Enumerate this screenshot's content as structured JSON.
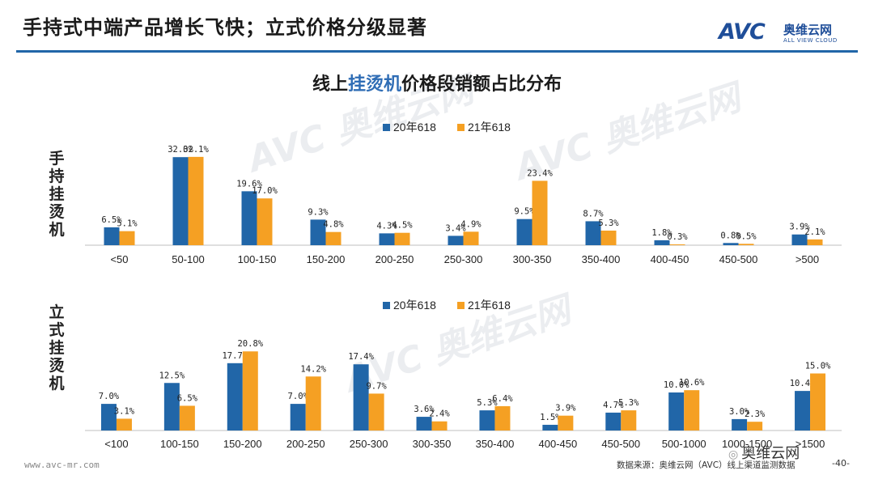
{
  "header": {
    "title": "手持式中端产品增长飞快；立式价格分级显著",
    "logo_mark": "AVC",
    "logo_cn": "奥维云网",
    "logo_en": "ALL VIEW CLOUD"
  },
  "chart_title": {
    "pre": "线上",
    "highlight": "挂烫机",
    "post": "价格段销额占比分布"
  },
  "colors": {
    "series1": "#2166a8",
    "series2": "#f5a023",
    "accent": "#2166a8"
  },
  "chart_data": [
    {
      "type": "bar",
      "side_label": "手持挂烫机",
      "categories": [
        "<50",
        "50-100",
        "100-150",
        "150-200",
        "200-250",
        "250-300",
        "300-350",
        "350-400",
        "400-450",
        "450-500",
        ">500"
      ],
      "series": [
        {
          "name": "20年618",
          "values": [
            6.5,
            32.0,
            19.6,
            9.3,
            4.3,
            3.4,
            9.5,
            8.7,
            1.8,
            0.8,
            3.9
          ]
        },
        {
          "name": "21年618",
          "values": [
            5.1,
            32.1,
            17.0,
            4.8,
            4.5,
            4.9,
            23.4,
            5.3,
            0.3,
            0.5,
            2.1
          ]
        }
      ],
      "data_labels": [
        [
          "6.5%",
          "32.0%",
          "19.6%",
          "9.3%",
          "4.3%",
          "3.4%",
          "9.5%",
          "8.7%",
          "1.8%",
          "0.8%",
          "3.9%"
        ],
        [
          "5.1%",
          "32.1%",
          "17.0%",
          "4.8%",
          "4.5%",
          "4.9%",
          "23.4%",
          "5.3%",
          "0.3%",
          "0.5%",
          "2.1%"
        ]
      ],
      "legend": "top-center"
    },
    {
      "type": "bar",
      "side_label": "立式挂烫机",
      "categories": [
        "<100",
        "100-150",
        "150-200",
        "200-250",
        "250-300",
        "300-350",
        "350-400",
        "400-450",
        "450-500",
        "500-1000",
        "1000-1500",
        ">1500"
      ],
      "series": [
        {
          "name": "20年618",
          "values": [
            7.0,
            12.5,
            17.7,
            7.0,
            17.4,
            3.6,
            5.3,
            1.5,
            4.7,
            10.0,
            3.0,
            10.4
          ]
        },
        {
          "name": "21年618",
          "values": [
            3.1,
            6.5,
            20.8,
            14.2,
            9.7,
            2.4,
            6.4,
            3.9,
            5.3,
            10.6,
            2.3,
            15.0
          ]
        }
      ],
      "data_labels": [
        [
          "7.0%",
          "12.5%",
          "17.7%",
          "7.0%",
          "17.4%",
          "3.6%",
          "5.3%",
          "1.5%",
          "4.7%",
          "10.0%",
          "3.0%",
          "10.4%"
        ],
        [
          "3.1%",
          "6.5%",
          "20.8%",
          "14.2%",
          "9.7%",
          "2.4%",
          "6.4%",
          "3.9%",
          "5.3%",
          "10.6%",
          "2.3%",
          "15.0%"
        ]
      ],
      "legend": "top-center"
    }
  ],
  "footer": {
    "website": "www.avc-mr.com",
    "source": "数据来源：奥维云网（AVC）线上渠道监测数据",
    "page": "-40-",
    "wechat_badge": "奥维云网"
  }
}
